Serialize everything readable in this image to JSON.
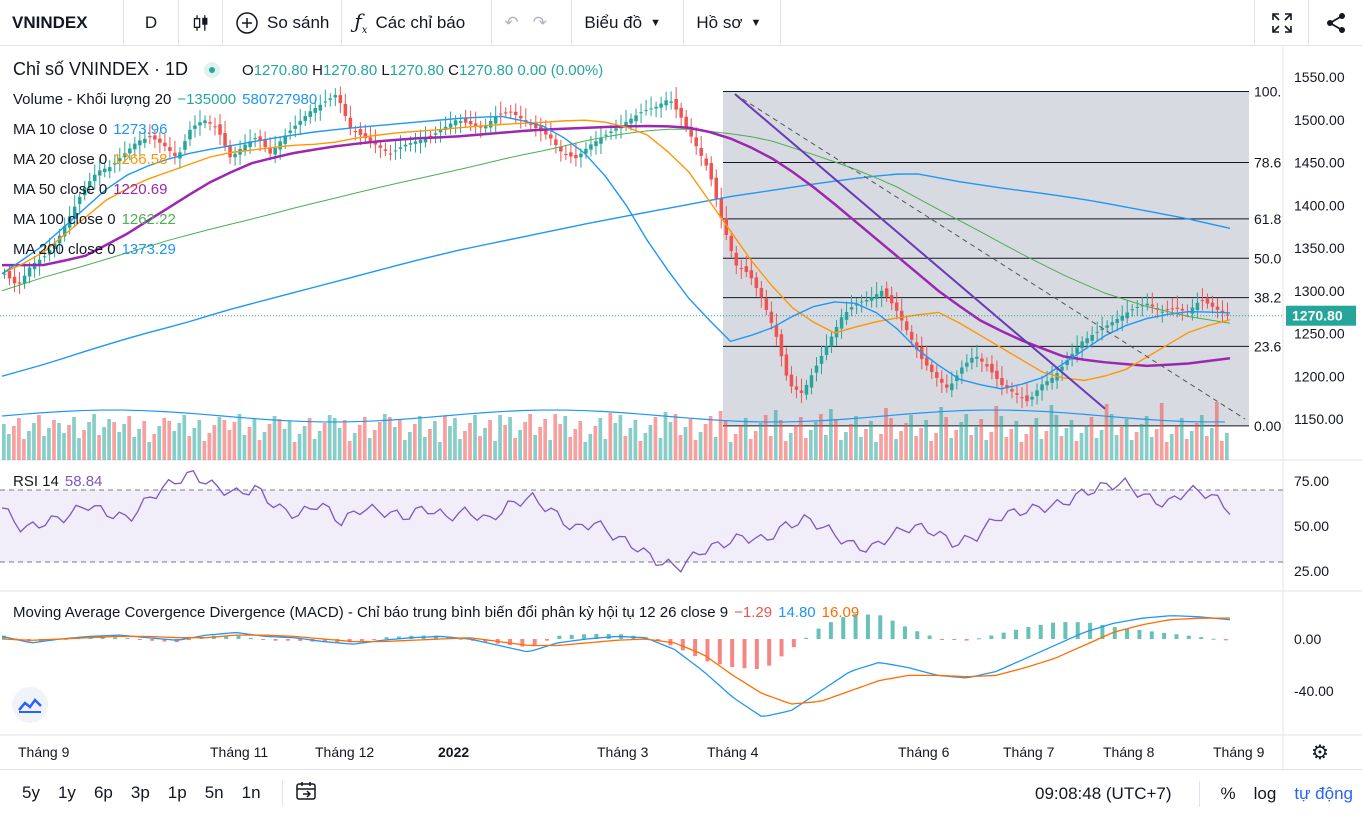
{
  "toolbar": {
    "symbol": "VNINDEX",
    "interval": "D",
    "compare_label": "So sánh",
    "indicators_label": "Các chỉ báo",
    "chart_label": "Biểu đồ",
    "profile_label": "Hồ sơ"
  },
  "legend": {
    "title": "Chỉ số VNINDEX · 1D",
    "o_label": "O",
    "o_value": "1270.80",
    "h_label": "H",
    "h_value": "1270.80",
    "l_label": "L",
    "l_value": "1270.80",
    "c_label": "C",
    "c_value": "1270.80",
    "change": "0.00 (0.00%)",
    "volume_label": "Volume - Khối lượng 20",
    "volume_v1": "−135000",
    "volume_v2": "580727980",
    "ma10_label": "MA 10 close 0",
    "ma10_value": "1273.96",
    "ma20_label": "MA 20 close 0",
    "ma20_value": "1266.58",
    "ma50_label": "MA 50 close 0",
    "ma50_value": "1220.69",
    "ma100_label": "MA 100 close 0",
    "ma100_value": "1262.22",
    "ma200_label": "MA 200 close 0",
    "ma200_value": "1373.29",
    "rsi_label": "RSI 14",
    "rsi_value": "58.84",
    "macd_label": "Moving Average Covergence Divergence (MACD) - Chỉ báo trung bình biến đổi phân kỳ hội tụ 12 26 close 9",
    "macd_hist": "−1.29",
    "macd_line": "14.80",
    "macd_signal": "16.09"
  },
  "colors": {
    "up": "#26a69a",
    "down": "#ef5350",
    "ma10": "#2196f3",
    "ma20": "#ff9800",
    "ma50": "#9c27b0",
    "ma100": "#4caf50",
    "ma200": "#2196f3",
    "rsi": "#7e57c2",
    "macd": "#2196f3",
    "signal": "#ff6d00",
    "accent": "#2962ff"
  },
  "chart_data": {
    "type": "candlestick",
    "price_axis": {
      "min": 1150,
      "max": 1550,
      "ticks": [
        "1550.00",
        "1500.00",
        "1450.00",
        "1400.00",
        "1350.00",
        "1300.00",
        "1250.00",
        "1200.00",
        "1150.00"
      ]
    },
    "last_price_label": "1270.80",
    "x_labels": [
      "Tháng 9",
      "Tháng 11",
      "Tháng 12",
      "2022",
      "Tháng 3",
      "Tháng 4",
      "Tháng 6",
      "Tháng 7",
      "Tháng 8",
      "Tháng 9"
    ],
    "fib_levels": [
      {
        "label": "100.",
        "price": 1533
      },
      {
        "label": "78.6",
        "price": 1450
      },
      {
        "label": "61.8",
        "price": 1384
      },
      {
        "label": "50.0",
        "price": 1338
      },
      {
        "label": "38.2",
        "price": 1292
      },
      {
        "label": "23.6",
        "price": 1235
      },
      {
        "label": "0.00",
        "price": 1142
      }
    ],
    "close_series": [
      1320,
      1305,
      1330,
      1340,
      1360,
      1390,
      1420,
      1440,
      1445,
      1460,
      1475,
      1480,
      1470,
      1455,
      1490,
      1500,
      1490,
      1455,
      1470,
      1480,
      1460,
      1480,
      1495,
      1510,
      1520,
      1530,
      1490,
      1480,
      1470,
      1460,
      1470,
      1475,
      1480,
      1490,
      1500,
      1495,
      1490,
      1505,
      1510,
      1500,
      1490,
      1480,
      1460,
      1455,
      1470,
      1480,
      1490,
      1500,
      1510,
      1515,
      1525,
      1500,
      1470,
      1440,
      1380,
      1330,
      1320,
      1290,
      1250,
      1190,
      1180,
      1210,
      1240,
      1270,
      1285,
      1290,
      1300,
      1280,
      1250,
      1220,
      1200,
      1185,
      1210,
      1225,
      1210,
      1190,
      1180,
      1170,
      1190,
      1200,
      1220,
      1240,
      1250,
      1260,
      1270,
      1280,
      1285,
      1275,
      1280,
      1275,
      1290,
      1280,
      1270.8
    ],
    "ma200_series": [
      1200,
      1215,
      1232,
      1248,
      1262,
      1278,
      1292,
      1306,
      1320,
      1334,
      1347,
      1358,
      1369,
      1380,
      1390,
      1400,
      1410,
      1418,
      1426,
      1433,
      1438,
      1428,
      1420,
      1413,
      1405,
      1395,
      1385,
      1373
    ],
    "ma100_series": [
      1300,
      1316,
      1330,
      1345,
      1360,
      1373,
      1385,
      1398,
      1410,
      1422,
      1433,
      1444,
      1456,
      1466,
      1478,
      1486,
      1490,
      1485,
      1478,
      1462,
      1445,
      1425,
      1398,
      1372,
      1345,
      1320,
      1298,
      1282,
      1270,
      1262
    ],
    "ma50_series": [
      1330,
      1330,
      1340,
      1365,
      1395,
      1425,
      1448,
      1460,
      1468,
      1474,
      1478,
      1480,
      1484,
      1488,
      1490,
      1492,
      1493,
      1490,
      1475,
      1450,
      1415,
      1375,
      1335,
      1295,
      1262,
      1240,
      1222,
      1216,
      1212,
      1215,
      1221
    ],
    "ma20_series": [
      1320,
      1340,
      1375,
      1410,
      1430,
      1445,
      1460,
      1465,
      1470,
      1472,
      1480,
      1485,
      1488,
      1492,
      1495,
      1497,
      1500,
      1496,
      1480,
      1440,
      1380,
      1320,
      1275,
      1250,
      1262,
      1270,
      1275,
      1250,
      1225,
      1200,
      1195,
      1205,
      1230,
      1255,
      1266
    ],
    "ma10_series": [
      1320,
      1350,
      1390,
      1430,
      1450,
      1462,
      1470,
      1478,
      1485,
      1490,
      1494,
      1498,
      1502,
      1504,
      1495,
      1470,
      1420,
      1345,
      1285,
      1240,
      1255,
      1280,
      1290,
      1270,
      1225,
      1195,
      1185,
      1195,
      1225,
      1255,
      1270,
      1276,
      1274
    ],
    "volume_avg_label": "580727980",
    "rsi_axis": {
      "ticks": [
        "75.00",
        "50.00",
        "25.00"
      ],
      "upper": 70,
      "lower": 30
    },
    "rsi_series": [
      60,
      48,
      52,
      55,
      62,
      57,
      54,
      66,
      74,
      79,
      72,
      68,
      71,
      60,
      56,
      63,
      52,
      60,
      58,
      55,
      60,
      55,
      58,
      53,
      62,
      66,
      58,
      48,
      52,
      44,
      38,
      30,
      27,
      36,
      40,
      44,
      42,
      50,
      54,
      48,
      40,
      37,
      45,
      50,
      47,
      40,
      44,
      55,
      58,
      60,
      62,
      68,
      72,
      74,
      66,
      62,
      70,
      68,
      58.84
    ],
    "macd_axis": {
      "ticks": [
        "0.00",
        "-40.00"
      ]
    },
    "macd_series": [
      2,
      -3,
      0,
      2,
      3,
      1,
      -1,
      3,
      5,
      2,
      1,
      -2,
      -4,
      -1,
      1,
      2,
      0,
      -5,
      -10,
      -3,
      0,
      2,
      1,
      -8,
      -25,
      -45,
      -60,
      -55,
      -40,
      -25,
      -18,
      -22,
      -28,
      -30,
      -25,
      -15,
      -5,
      5,
      12,
      16,
      18,
      17,
      14.8
    ],
    "signal_series": [
      0,
      -1,
      0,
      1,
      2,
      2,
      1,
      1,
      3,
      3,
      2,
      0,
      -2,
      -2,
      -1,
      0,
      1,
      -2,
      -5,
      -5,
      -3,
      -1,
      0,
      -3,
      -12,
      -28,
      -42,
      -50,
      -48,
      -40,
      -32,
      -28,
      -28,
      -29,
      -28,
      -22,
      -15,
      -5,
      5,
      11,
      15,
      16,
      16.09
    ],
    "time_label": "09:08:48 (UTC+7)"
  },
  "bottom": {
    "ranges": [
      "5y",
      "1y",
      "6p",
      "3p",
      "1p",
      "5n",
      "1n"
    ],
    "percent": "%",
    "log": "log",
    "auto": "tự động"
  }
}
